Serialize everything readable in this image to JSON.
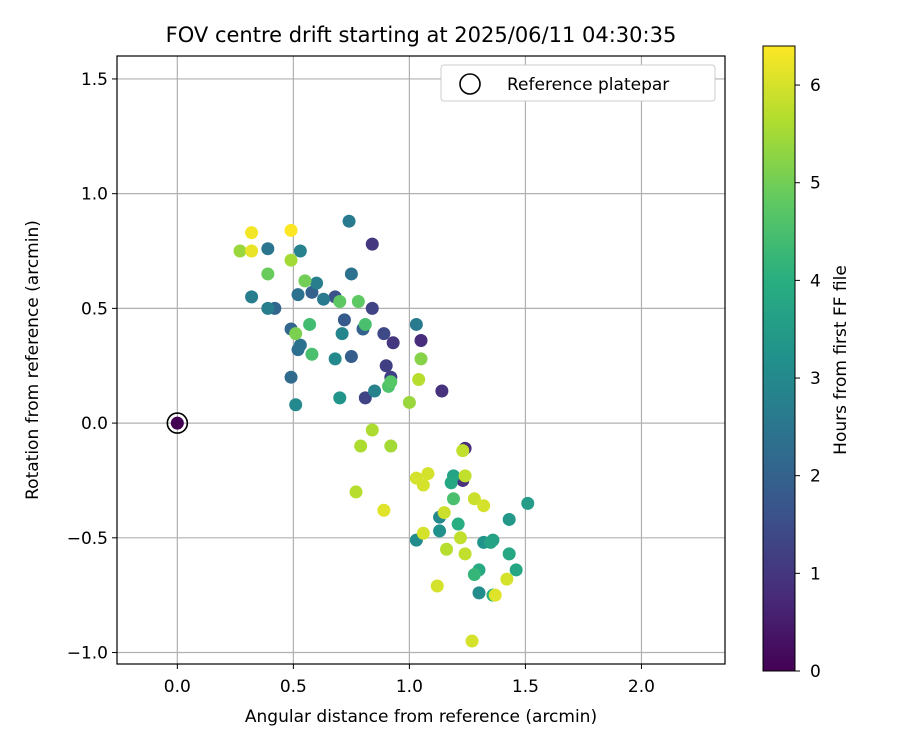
{
  "chart_data": {
    "type": "scatter",
    "title": "FOV centre drift starting at 2025/06/11 04:30:35",
    "xlabel": "Angular distance from reference (arcmin)",
    "ylabel": "Rotation from reference (arcmin)",
    "xlim": [
      -0.26,
      2.36
    ],
    "ylim": [
      -1.05,
      1.6
    ],
    "xticks": [
      0.0,
      0.5,
      1.0,
      1.5,
      2.0
    ],
    "xtick_labels": [
      "0.0",
      "0.5",
      "1.0",
      "1.5",
      "2.0"
    ],
    "yticks": [
      -1.0,
      -0.5,
      0.0,
      0.5,
      1.0,
      1.5
    ],
    "ytick_labels": [
      "−1.0",
      "−0.5",
      "0.0",
      "0.5",
      "1.0",
      "1.5"
    ],
    "grid": true,
    "legend": {
      "placement": "top-right",
      "entries": [
        "Reference platepar"
      ]
    },
    "reference_point": {
      "x": 0.0,
      "y": 0.0
    },
    "colorbar": {
      "label": "Hours from first FF file",
      "min": 0,
      "max": 6.4,
      "ticks": [
        0,
        1,
        2,
        3,
        4,
        5,
        6
      ],
      "tick_labels": [
        "0",
        "1",
        "2",
        "3",
        "4",
        "5",
        "6"
      ],
      "colormap": "viridis"
    },
    "points": [
      {
        "x": 0.0,
        "y": 0.0,
        "c": 0.0
      },
      {
        "x": 1.05,
        "y": 0.36,
        "c": 0.8
      },
      {
        "x": 0.84,
        "y": 0.78,
        "c": 1.0
      },
      {
        "x": 1.14,
        "y": 0.14,
        "c": 0.9
      },
      {
        "x": 1.24,
        "y": -0.11,
        "c": 0.8
      },
      {
        "x": 1.23,
        "y": -0.25,
        "c": 0.9
      },
      {
        "x": 0.93,
        "y": 0.35,
        "c": 1.0
      },
      {
        "x": 0.92,
        "y": 0.2,
        "c": 1.2
      },
      {
        "x": 0.9,
        "y": 0.25,
        "c": 1.2
      },
      {
        "x": 0.81,
        "y": 0.11,
        "c": 1.3
      },
      {
        "x": 0.84,
        "y": 0.5,
        "c": 1.3
      },
      {
        "x": 0.89,
        "y": 0.39,
        "c": 1.4
      },
      {
        "x": 0.68,
        "y": 0.55,
        "c": 1.6
      },
      {
        "x": 0.72,
        "y": 0.45,
        "c": 1.8
      },
      {
        "x": 0.75,
        "y": 0.29,
        "c": 1.9
      },
      {
        "x": 0.8,
        "y": 0.41,
        "c": 2.0
      },
      {
        "x": 0.58,
        "y": 0.57,
        "c": 2.0
      },
      {
        "x": 0.49,
        "y": 0.41,
        "c": 2.1
      },
      {
        "x": 0.42,
        "y": 0.5,
        "c": 2.1
      },
      {
        "x": 0.49,
        "y": 0.2,
        "c": 2.2
      },
      {
        "x": 0.52,
        "y": 0.32,
        "c": 2.3
      },
      {
        "x": 0.53,
        "y": 0.34,
        "c": 2.4
      },
      {
        "x": 0.52,
        "y": 0.56,
        "c": 2.4
      },
      {
        "x": 0.75,
        "y": 0.65,
        "c": 2.4
      },
      {
        "x": 0.39,
        "y": 0.76,
        "c": 2.5
      },
      {
        "x": 0.63,
        "y": 0.54,
        "c": 2.6
      },
      {
        "x": 0.74,
        "y": 0.88,
        "c": 2.6
      },
      {
        "x": 1.03,
        "y": 0.43,
        "c": 2.6
      },
      {
        "x": 0.32,
        "y": 0.55,
        "c": 2.7
      },
      {
        "x": 0.39,
        "y": 0.5,
        "c": 2.7
      },
      {
        "x": 0.6,
        "y": 0.61,
        "c": 2.7
      },
      {
        "x": 0.53,
        "y": 0.75,
        "c": 2.8
      },
      {
        "x": 0.85,
        "y": 0.14,
        "c": 2.8
      },
      {
        "x": 0.71,
        "y": 0.39,
        "c": 2.9
      },
      {
        "x": 0.51,
        "y": 0.08,
        "c": 3.0
      },
      {
        "x": 0.68,
        "y": 0.28,
        "c": 3.0
      },
      {
        "x": 1.13,
        "y": -0.41,
        "c": 3.0
      },
      {
        "x": 1.03,
        "y": -0.51,
        "c": 3.1
      },
      {
        "x": 1.3,
        "y": -0.74,
        "c": 3.1
      },
      {
        "x": 1.13,
        "y": -0.47,
        "c": 3.2
      },
      {
        "x": 0.7,
        "y": 0.11,
        "c": 3.3
      },
      {
        "x": 1.32,
        "y": -0.52,
        "c": 3.3
      },
      {
        "x": 1.43,
        "y": -0.42,
        "c": 3.4
      },
      {
        "x": 1.51,
        "y": -0.35,
        "c": 3.5
      },
      {
        "x": 1.36,
        "y": -0.51,
        "c": 3.6
      },
      {
        "x": 1.35,
        "y": -0.52,
        "c": 3.7
      },
      {
        "x": 1.19,
        "y": -0.23,
        "c": 3.7
      },
      {
        "x": 1.18,
        "y": -0.26,
        "c": 3.8
      },
      {
        "x": 1.46,
        "y": -0.64,
        "c": 3.8
      },
      {
        "x": 1.43,
        "y": -0.57,
        "c": 3.8
      },
      {
        "x": 1.3,
        "y": -0.64,
        "c": 3.9
      },
      {
        "x": 1.21,
        "y": -0.44,
        "c": 4.0
      },
      {
        "x": 1.36,
        "y": -0.75,
        "c": 4.1
      },
      {
        "x": 1.28,
        "y": -0.66,
        "c": 4.2
      },
      {
        "x": 0.57,
        "y": 0.43,
        "c": 4.4
      },
      {
        "x": 0.58,
        "y": 0.3,
        "c": 4.5
      },
      {
        "x": 0.81,
        "y": 0.43,
        "c": 4.5
      },
      {
        "x": 1.19,
        "y": -0.33,
        "c": 4.5
      },
      {
        "x": 0.91,
        "y": 0.16,
        "c": 4.6
      },
      {
        "x": 0.92,
        "y": 0.18,
        "c": 4.7
      },
      {
        "x": 0.7,
        "y": 0.53,
        "c": 4.8
      },
      {
        "x": 0.78,
        "y": 0.53,
        "c": 4.8
      },
      {
        "x": 0.39,
        "y": 0.65,
        "c": 4.9
      },
      {
        "x": 0.55,
        "y": 0.62,
        "c": 5.0
      },
      {
        "x": 0.51,
        "y": 0.39,
        "c": 5.1
      },
      {
        "x": 1.05,
        "y": 0.28,
        "c": 5.2
      },
      {
        "x": 1.0,
        "y": 0.09,
        "c": 5.4
      },
      {
        "x": 0.27,
        "y": 0.75,
        "c": 5.4
      },
      {
        "x": 0.49,
        "y": 0.71,
        "c": 5.5
      },
      {
        "x": 0.92,
        "y": -0.1,
        "c": 5.5
      },
      {
        "x": 0.84,
        "y": -0.03,
        "c": 5.6
      },
      {
        "x": 0.79,
        "y": -0.1,
        "c": 5.6
      },
      {
        "x": 0.77,
        "y": -0.3,
        "c": 5.7
      },
      {
        "x": 1.04,
        "y": 0.19,
        "c": 5.7
      },
      {
        "x": 1.16,
        "y": -0.55,
        "c": 5.7
      },
      {
        "x": 1.23,
        "y": -0.12,
        "c": 5.8
      },
      {
        "x": 1.24,
        "y": -0.23,
        "c": 5.8
      },
      {
        "x": 1.22,
        "y": -0.5,
        "c": 5.8
      },
      {
        "x": 1.24,
        "y": -0.57,
        "c": 5.8
      },
      {
        "x": 1.28,
        "y": -0.33,
        "c": 5.9
      },
      {
        "x": 1.15,
        "y": -0.39,
        "c": 5.9
      },
      {
        "x": 1.08,
        "y": -0.22,
        "c": 6.0
      },
      {
        "x": 1.06,
        "y": -0.27,
        "c": 6.0
      },
      {
        "x": 1.03,
        "y": -0.24,
        "c": 6.0
      },
      {
        "x": 1.06,
        "y": -0.48,
        "c": 6.0
      },
      {
        "x": 1.32,
        "y": -0.36,
        "c": 6.0
      },
      {
        "x": 1.12,
        "y": -0.71,
        "c": 6.0
      },
      {
        "x": 1.27,
        "y": -0.95,
        "c": 6.0
      },
      {
        "x": 1.42,
        "y": -0.68,
        "c": 6.0
      },
      {
        "x": 1.37,
        "y": -0.75,
        "c": 6.1
      },
      {
        "x": 0.89,
        "y": -0.38,
        "c": 6.1
      },
      {
        "x": 0.32,
        "y": 0.75,
        "c": 6.2
      },
      {
        "x": 0.32,
        "y": 0.83,
        "c": 6.3
      },
      {
        "x": 0.49,
        "y": 0.84,
        "c": 6.4
      }
    ]
  }
}
